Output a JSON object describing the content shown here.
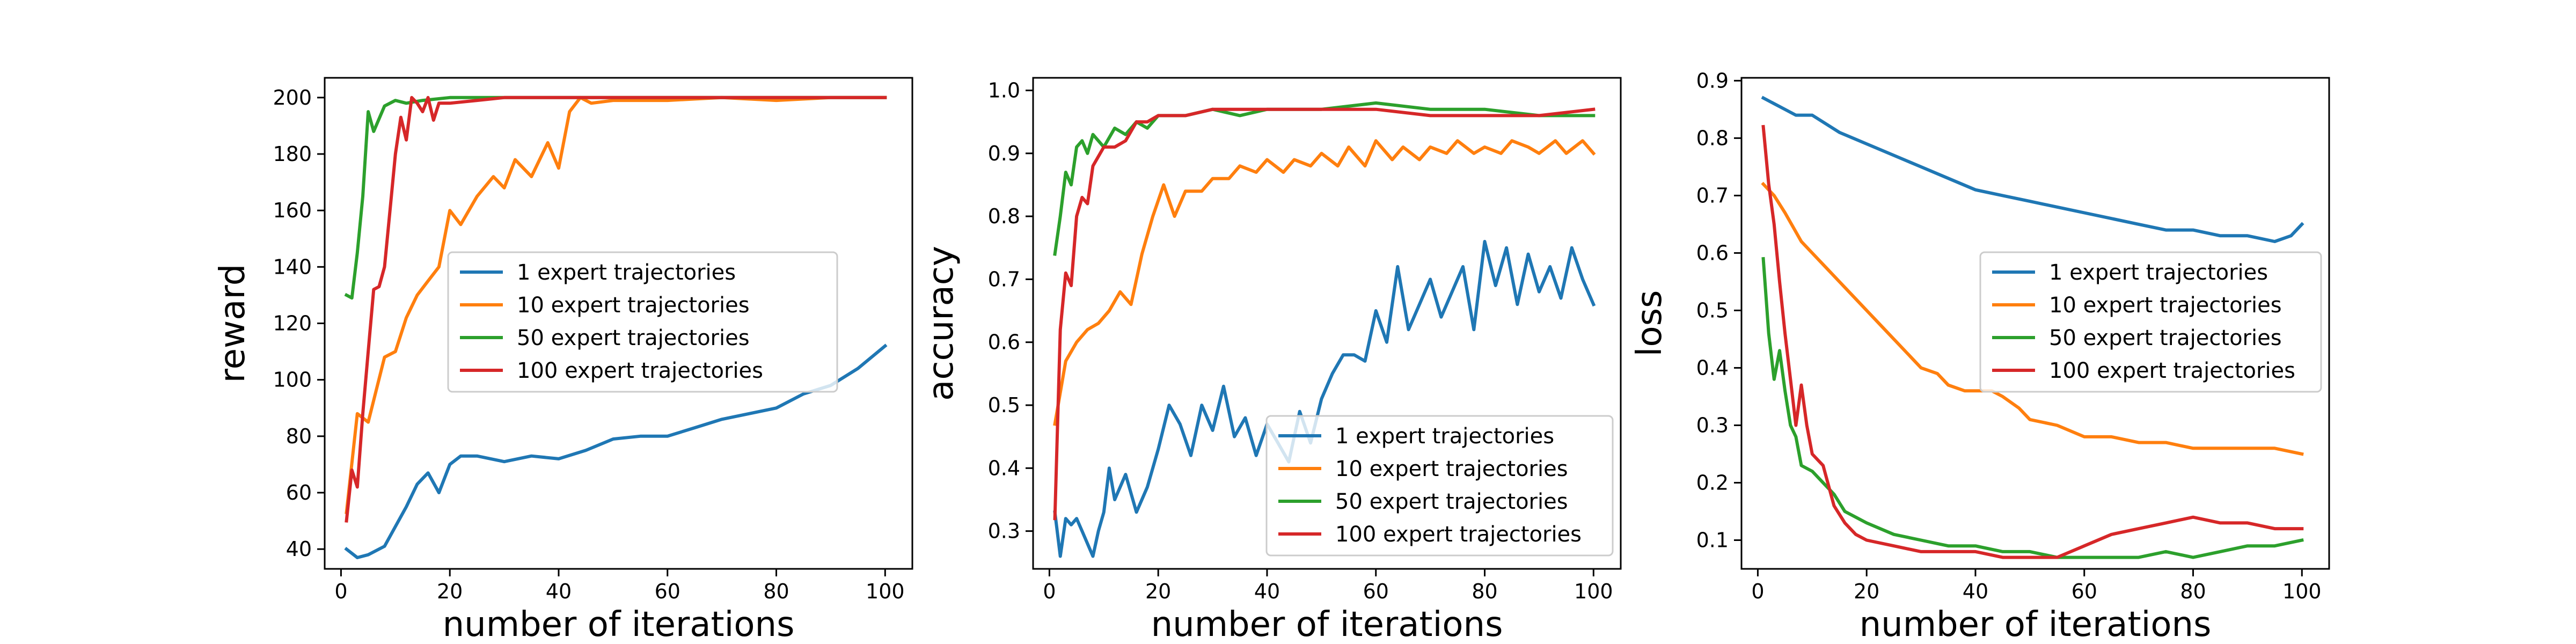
{
  "chart_data": [
    {
      "type": "line",
      "xlabel": "number of iterations",
      "ylabel": "reward",
      "xlim": [
        -3,
        105
      ],
      "ylim": [
        33,
        207
      ],
      "xticks": [
        0,
        20,
        40,
        60,
        80,
        100
      ],
      "yticks": [
        40,
        60,
        80,
        100,
        120,
        140,
        160,
        180,
        200
      ],
      "legend": "center-right",
      "series": [
        {
          "name": "1 expert trajectories",
          "color": "#1f77b4",
          "x": [
            1,
            3,
            5,
            8,
            10,
            12,
            14,
            16,
            18,
            20,
            22,
            25,
            30,
            35,
            40,
            45,
            50,
            55,
            60,
            65,
            70,
            75,
            80,
            85,
            90,
            95,
            100
          ],
          "y": [
            40,
            37,
            38,
            41,
            48,
            55,
            63,
            67,
            60,
            70,
            73,
            73,
            71,
            73,
            72,
            75,
            79,
            80,
            80,
            83,
            86,
            88,
            90,
            95,
            98,
            104,
            112
          ]
        },
        {
          "name": "10 expert trajectories",
          "color": "#ff7f0e",
          "x": [
            1,
            3,
            5,
            8,
            10,
            12,
            14,
            16,
            18,
            20,
            22,
            25,
            28,
            30,
            32,
            35,
            38,
            40,
            42,
            44,
            46,
            50,
            60,
            70,
            80,
            90,
            100
          ],
          "y": [
            53,
            88,
            85,
            108,
            110,
            122,
            130,
            135,
            140,
            160,
            155,
            165,
            172,
            168,
            178,
            172,
            184,
            175,
            195,
            200,
            198,
            199,
            199,
            200,
            199,
            200,
            200
          ]
        },
        {
          "name": "50 expert trajectories",
          "color": "#2ca02c",
          "x": [
            1,
            2,
            3,
            4,
            5,
            6,
            8,
            10,
            12,
            15,
            20,
            30,
            40,
            60,
            80,
            100
          ],
          "y": [
            130,
            129,
            145,
            165,
            195,
            188,
            197,
            199,
            198,
            199,
            200,
            200,
            200,
            200,
            200,
            200
          ]
        },
        {
          "name": "100 expert trajectories",
          "color": "#d62728",
          "x": [
            1,
            2,
            3,
            4,
            5,
            6,
            7,
            8,
            9,
            10,
            11,
            12,
            13,
            14,
            15,
            16,
            17,
            18,
            20,
            25,
            30,
            50,
            70,
            100
          ],
          "y": [
            50,
            68,
            62,
            88,
            110,
            132,
            133,
            140,
            160,
            180,
            193,
            185,
            200,
            198,
            195,
            200,
            192,
            198,
            198,
            199,
            200,
            200,
            200,
            200
          ]
        }
      ]
    },
    {
      "type": "line",
      "xlabel": "number of iterations",
      "ylabel": "accuracy",
      "xlim": [
        -3,
        105
      ],
      "ylim": [
        0.24,
        1.02
      ],
      "xticks": [
        0,
        20,
        40,
        60,
        80,
        100
      ],
      "yticks": [
        0.3,
        0.4,
        0.5,
        0.6,
        0.7,
        0.8,
        0.9,
        1.0
      ],
      "legend": "lower-right",
      "series": [
        {
          "name": "1 expert trajectories",
          "color": "#1f77b4",
          "x": [
            1,
            2,
            3,
            4,
            5,
            6,
            7,
            8,
            9,
            10,
            11,
            12,
            14,
            16,
            18,
            20,
            22,
            24,
            26,
            28,
            30,
            32,
            34,
            36,
            38,
            40,
            42,
            44,
            46,
            48,
            50,
            52,
            54,
            56,
            58,
            60,
            62,
            64,
            66,
            68,
            70,
            72,
            74,
            76,
            78,
            80,
            82,
            84,
            86,
            88,
            90,
            92,
            94,
            96,
            98,
            100
          ],
          "y": [
            0.33,
            0.26,
            0.32,
            0.31,
            0.32,
            0.3,
            0.28,
            0.26,
            0.3,
            0.33,
            0.4,
            0.35,
            0.39,
            0.33,
            0.37,
            0.43,
            0.5,
            0.47,
            0.42,
            0.5,
            0.46,
            0.53,
            0.45,
            0.48,
            0.42,
            0.47,
            0.44,
            0.41,
            0.49,
            0.44,
            0.51,
            0.55,
            0.58,
            0.58,
            0.57,
            0.65,
            0.6,
            0.72,
            0.62,
            0.66,
            0.7,
            0.64,
            0.68,
            0.72,
            0.62,
            0.76,
            0.69,
            0.75,
            0.66,
            0.74,
            0.68,
            0.72,
            0.67,
            0.75,
            0.7,
            0.66
          ]
        },
        {
          "name": "10 expert trajectories",
          "color": "#ff7f0e",
          "x": [
            1,
            3,
            5,
            7,
            9,
            11,
            13,
            15,
            17,
            19,
            21,
            23,
            25,
            28,
            30,
            33,
            35,
            38,
            40,
            43,
            45,
            48,
            50,
            53,
            55,
            58,
            60,
            63,
            65,
            68,
            70,
            73,
            75,
            78,
            80,
            83,
            85,
            88,
            90,
            93,
            95,
            98,
            100
          ],
          "y": [
            0.47,
            0.57,
            0.6,
            0.62,
            0.63,
            0.65,
            0.68,
            0.66,
            0.74,
            0.8,
            0.85,
            0.8,
            0.84,
            0.84,
            0.86,
            0.86,
            0.88,
            0.87,
            0.89,
            0.87,
            0.89,
            0.88,
            0.9,
            0.88,
            0.91,
            0.88,
            0.92,
            0.89,
            0.91,
            0.89,
            0.91,
            0.9,
            0.92,
            0.9,
            0.91,
            0.9,
            0.92,
            0.91,
            0.9,
            0.92,
            0.9,
            0.92,
            0.9
          ]
        },
        {
          "name": "50 expert trajectories",
          "color": "#2ca02c",
          "x": [
            1,
            2,
            3,
            4,
            5,
            6,
            7,
            8,
            10,
            12,
            14,
            16,
            18,
            20,
            25,
            30,
            35,
            40,
            50,
            60,
            70,
            80,
            90,
            100
          ],
          "y": [
            0.74,
            0.8,
            0.87,
            0.85,
            0.91,
            0.92,
            0.9,
            0.93,
            0.91,
            0.94,
            0.93,
            0.95,
            0.94,
            0.96,
            0.96,
            0.97,
            0.96,
            0.97,
            0.97,
            0.98,
            0.97,
            0.97,
            0.96,
            0.96
          ]
        },
        {
          "name": "100 expert trajectories",
          "color": "#d62728",
          "x": [
            1,
            2,
            3,
            4,
            5,
            6,
            7,
            8,
            10,
            12,
            14,
            16,
            18,
            20,
            22,
            25,
            30,
            35,
            40,
            50,
            60,
            70,
            80,
            90,
            100
          ],
          "y": [
            0.32,
            0.62,
            0.71,
            0.69,
            0.8,
            0.83,
            0.82,
            0.88,
            0.91,
            0.91,
            0.92,
            0.95,
            0.95,
            0.96,
            0.96,
            0.96,
            0.97,
            0.97,
            0.97,
            0.97,
            0.97,
            0.96,
            0.96,
            0.96,
            0.97
          ]
        }
      ]
    },
    {
      "type": "line",
      "xlabel": "number of iterations",
      "ylabel": "loss",
      "xlim": [
        -3,
        105
      ],
      "ylim": [
        0.05,
        0.905
      ],
      "xticks": [
        0,
        20,
        40,
        60,
        80,
        100
      ],
      "yticks": [
        0.1,
        0.2,
        0.3,
        0.4,
        0.5,
        0.6,
        0.7,
        0.8,
        0.9
      ],
      "legend": "center-right",
      "series": [
        {
          "name": "1 expert trajectories",
          "color": "#1f77b4",
          "x": [
            1,
            3,
            5,
            7,
            10,
            15,
            20,
            25,
            30,
            35,
            40,
            45,
            50,
            55,
            60,
            65,
            70,
            75,
            80,
            85,
            90,
            95,
            98,
            100
          ],
          "y": [
            0.87,
            0.86,
            0.85,
            0.84,
            0.84,
            0.81,
            0.79,
            0.77,
            0.75,
            0.73,
            0.71,
            0.7,
            0.69,
            0.68,
            0.67,
            0.66,
            0.65,
            0.64,
            0.64,
            0.63,
            0.63,
            0.62,
            0.63,
            0.65
          ]
        },
        {
          "name": "10 expert trajectories",
          "color": "#ff7f0e",
          "x": [
            1,
            3,
            5,
            8,
            10,
            13,
            15,
            18,
            20,
            23,
            25,
            28,
            30,
            33,
            35,
            38,
            40,
            43,
            45,
            48,
            50,
            55,
            60,
            65,
            70,
            75,
            80,
            85,
            90,
            95,
            100
          ],
          "y": [
            0.72,
            0.7,
            0.67,
            0.62,
            0.6,
            0.57,
            0.55,
            0.52,
            0.5,
            0.47,
            0.45,
            0.42,
            0.4,
            0.39,
            0.37,
            0.36,
            0.36,
            0.36,
            0.35,
            0.33,
            0.31,
            0.3,
            0.28,
            0.28,
            0.27,
            0.27,
            0.26,
            0.26,
            0.26,
            0.26,
            0.25
          ]
        },
        {
          "name": "50 expert trajectories",
          "color": "#2ca02c",
          "x": [
            1,
            2,
            3,
            4,
            5,
            6,
            7,
            8,
            10,
            12,
            14,
            16,
            18,
            20,
            25,
            30,
            35,
            40,
            45,
            50,
            55,
            60,
            65,
            70,
            75,
            80,
            85,
            90,
            95,
            100
          ],
          "y": [
            0.59,
            0.46,
            0.38,
            0.43,
            0.36,
            0.3,
            0.28,
            0.23,
            0.22,
            0.2,
            0.18,
            0.15,
            0.14,
            0.13,
            0.11,
            0.1,
            0.09,
            0.09,
            0.08,
            0.08,
            0.07,
            0.07,
            0.07,
            0.07,
            0.08,
            0.07,
            0.08,
            0.09,
            0.09,
            0.1
          ]
        },
        {
          "name": "100 expert trajectories",
          "color": "#d62728",
          "x": [
            1,
            2,
            3,
            4,
            5,
            6,
            7,
            8,
            9,
            10,
            11,
            12,
            14,
            16,
            18,
            20,
            25,
            30,
            35,
            40,
            45,
            50,
            55,
            60,
            65,
            70,
            75,
            80,
            85,
            90,
            95,
            100
          ],
          "y": [
            0.82,
            0.72,
            0.65,
            0.55,
            0.46,
            0.38,
            0.3,
            0.37,
            0.3,
            0.25,
            0.24,
            0.23,
            0.16,
            0.13,
            0.11,
            0.1,
            0.09,
            0.08,
            0.08,
            0.08,
            0.07,
            0.07,
            0.07,
            0.09,
            0.11,
            0.12,
            0.13,
            0.14,
            0.13,
            0.13,
            0.12,
            0.12
          ]
        }
      ]
    }
  ]
}
